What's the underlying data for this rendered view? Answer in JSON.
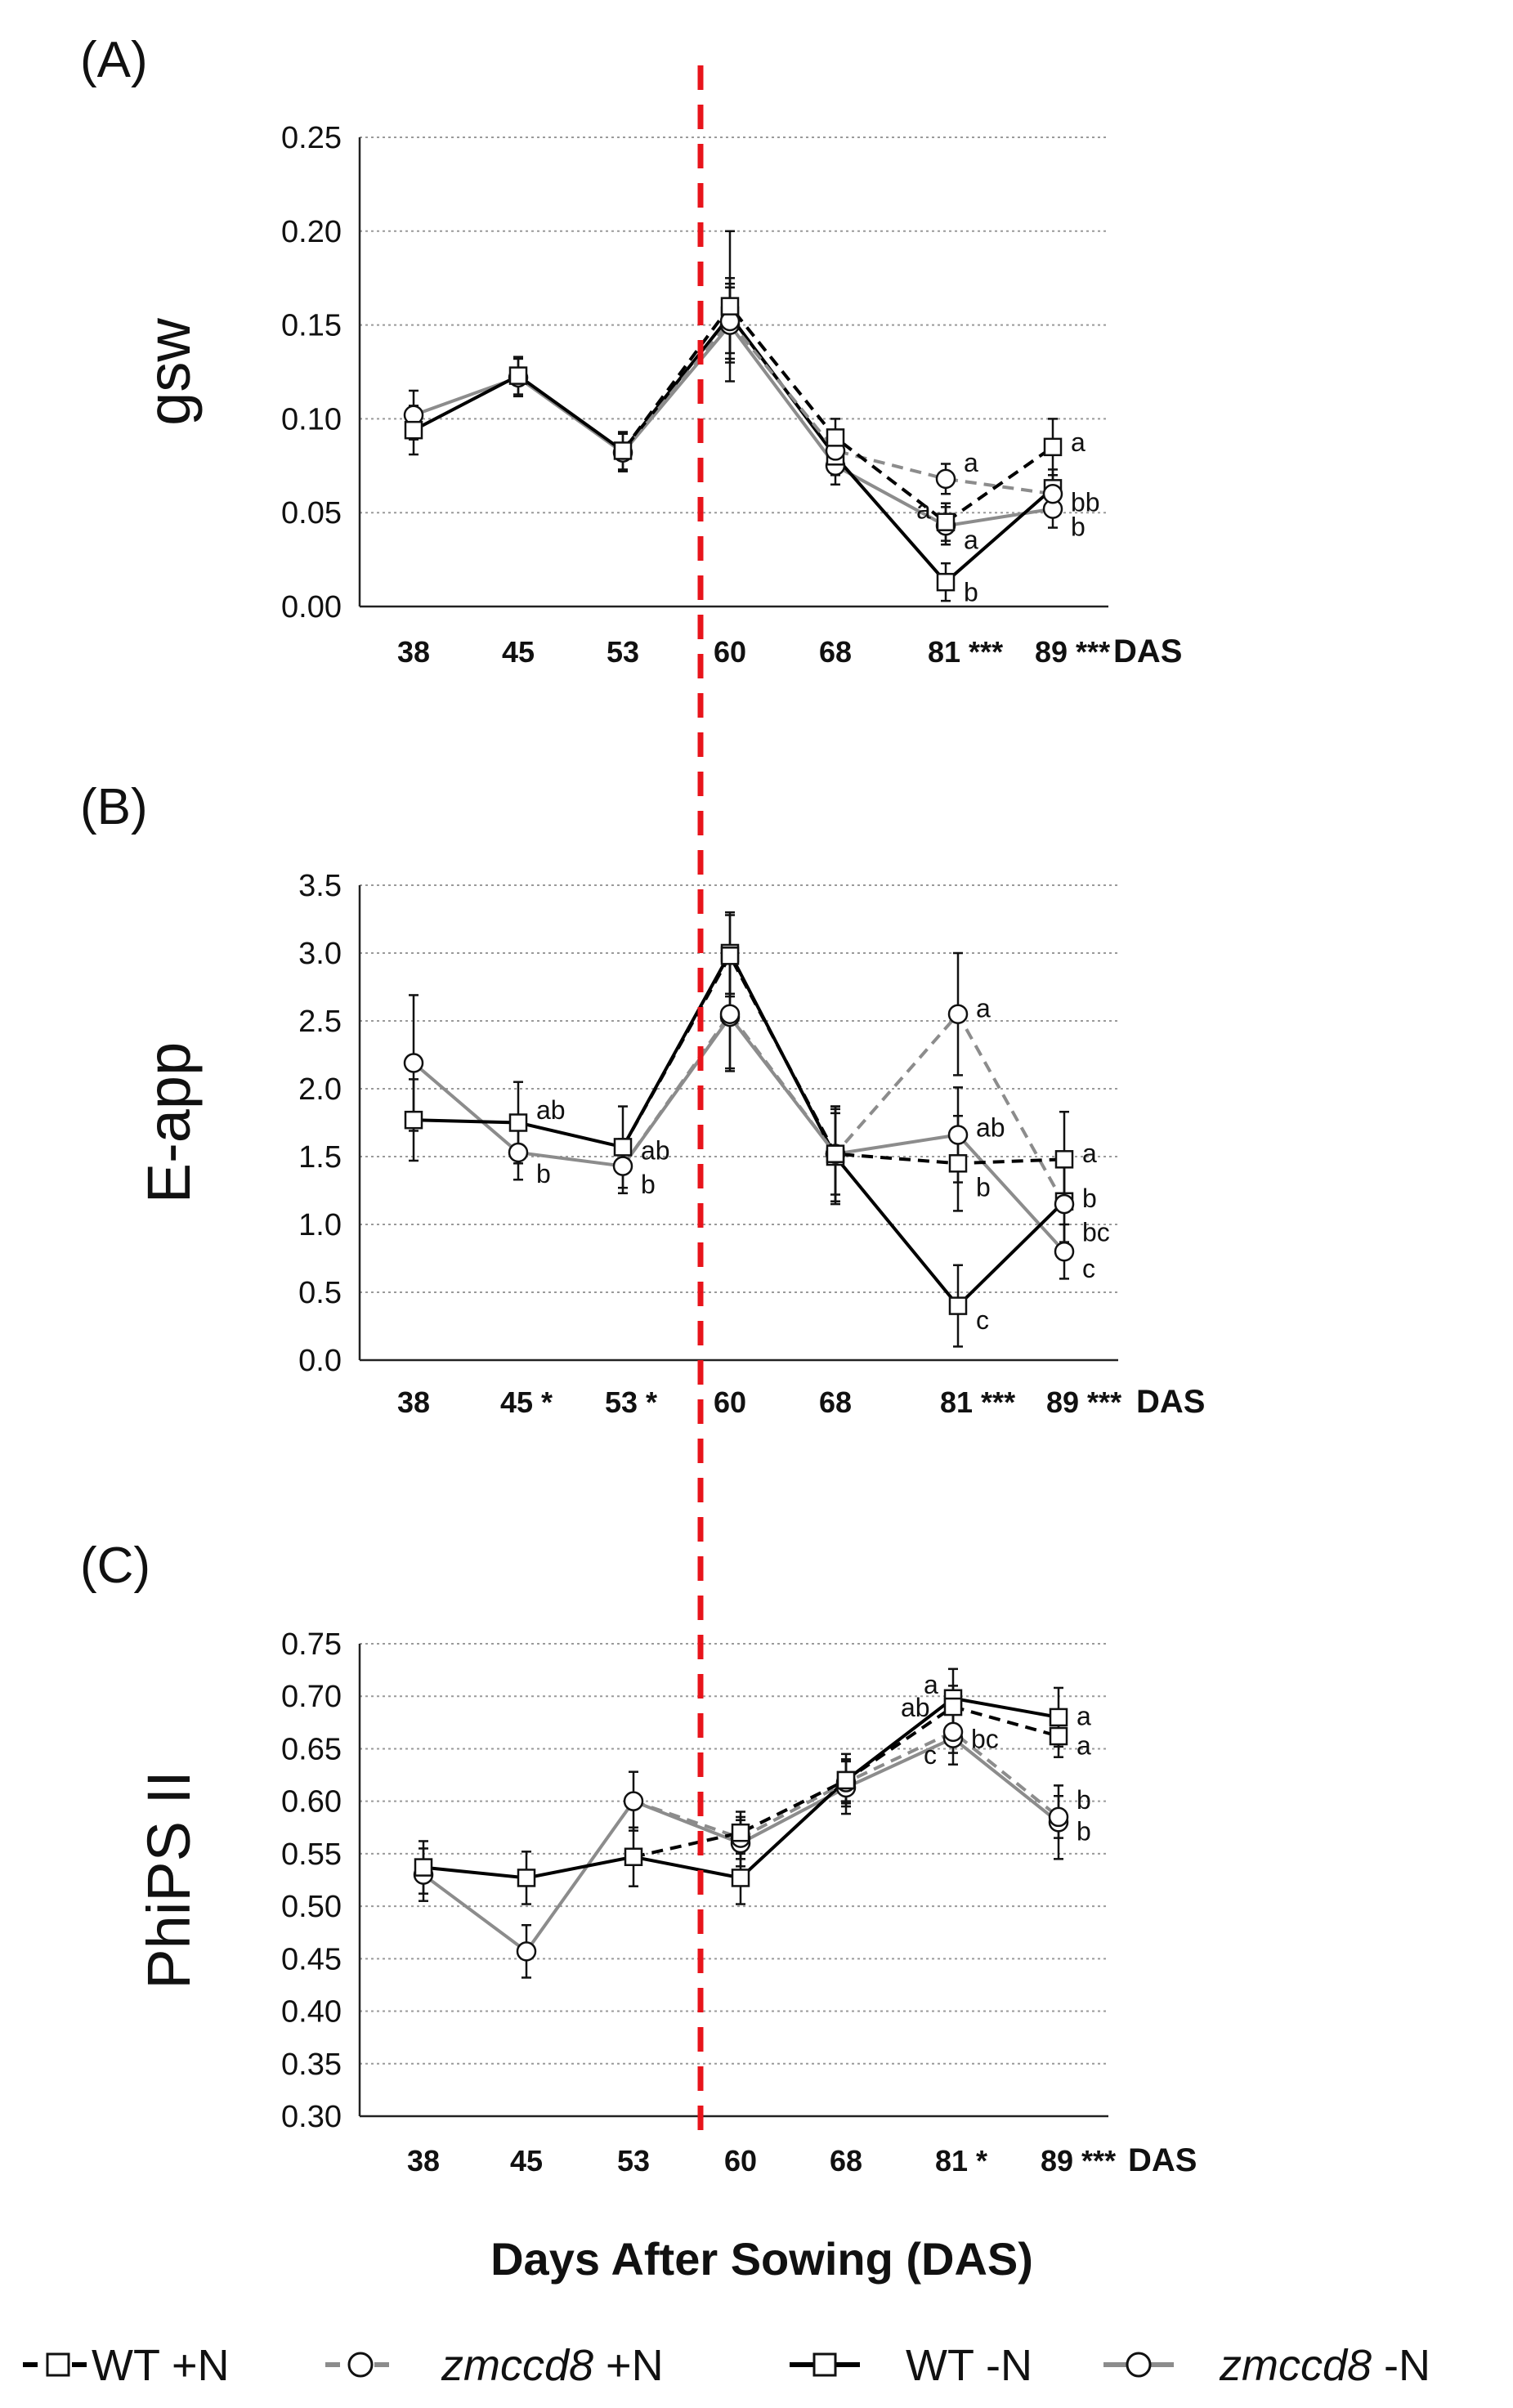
{
  "chart_data": {
    "type": "line",
    "shared_xlabel": "Days After Sowing (DAS)",
    "reference_line": {
      "label": "red dashed line between 53 and 60 DAS",
      "color": "#e8141b"
    },
    "legend": [
      {
        "id": "wt_pn",
        "prefix": "",
        "label": " +N",
        "name_main": "WT",
        "italic": false,
        "color": "#000000",
        "marker": "square",
        "dashed": true
      },
      {
        "id": "zm_pn",
        "prefix": "",
        "label": " +N",
        "name_main": "zmccd8",
        "italic": true,
        "color": "#8c8c8c",
        "marker": "circle",
        "dashed": true
      },
      {
        "id": "wt_mn",
        "prefix": "",
        "label": " -N",
        "name_main": "WT",
        "italic": false,
        "color": "#000000",
        "marker": "square",
        "dashed": false
      },
      {
        "id": "zm_mn",
        "prefix": "",
        "label": " -N",
        "name_main": "zmccd8",
        "italic": true,
        "color": "#8c8c8c",
        "marker": "circle",
        "dashed": false
      }
    ],
    "panels": [
      {
        "panel_label": "(A)",
        "ylabel": "gsw",
        "ylim": [
          0,
          0.25
        ],
        "yticks": [
          "0.00",
          "0.05",
          "0.10",
          "0.15",
          "0.20",
          "0.25"
        ],
        "ytick_values": [
          0,
          0.05,
          0.1,
          0.15,
          0.2,
          0.25
        ],
        "x": [
          38,
          45,
          53,
          60,
          68,
          81,
          89
        ],
        "x_labels": [
          "38",
          "45",
          "53",
          "60",
          "68",
          "81 ***",
          "89 ***"
        ],
        "x_unit": "DAS",
        "series": [
          {
            "id": "wt_pn",
            "values": [
              null,
              null,
              null,
              0.16,
              0.09,
              0.045,
              0.085
            ],
            "errors": [
              null,
              null,
              null,
              0.04,
              0.01,
              0.01,
              0.015
            ]
          },
          {
            "id": "zm_pn",
            "values": [
              null,
              null,
              null,
              0.152,
              0.083,
              0.068,
              0.06
            ],
            "errors": [
              null,
              null,
              null,
              0.02,
              0.01,
              0.008,
              0.01
            ]
          },
          {
            "id": "wt_mn",
            "values": [
              0.094,
              0.123,
              0.083,
              0.155,
              0.08,
              0.013,
              0.063
            ],
            "errors": [
              0.013,
              0.01,
              0.01,
              0.02,
              0.01,
              0.01,
              0.01
            ]
          },
          {
            "id": "zm_mn",
            "values": [
              0.102,
              0.122,
              0.082,
              0.15,
              0.075,
              0.043,
              0.052
            ],
            "errors": [
              0.013,
              0.01,
              0.01,
              0.02,
              0.01,
              0.01,
              0.01
            ]
          }
        ],
        "annotations": [
          {
            "text": "a",
            "x": 81,
            "y": 0.077
          },
          {
            "text": "a",
            "x": 81,
            "y": 0.052,
            "side": "left"
          },
          {
            "text": "a",
            "x": 81,
            "y": 0.036
          },
          {
            "text": "b",
            "x": 81,
            "y": 0.008
          },
          {
            "text": "a",
            "x": 89,
            "y": 0.088
          },
          {
            "text": "bb",
            "x": 89,
            "y": 0.056
          },
          {
            "text": "b",
            "x": 89,
            "y": 0.043
          }
        ]
      },
      {
        "panel_label": "(B)",
        "ylabel": "E-app",
        "ylim": [
          0,
          3.5
        ],
        "yticks": [
          "0.0",
          "0.5",
          "1.0",
          "1.5",
          "2.0",
          "2.5",
          "3.0",
          "3.5"
        ],
        "ytick_values": [
          0,
          0.5,
          1.0,
          1.5,
          2.0,
          2.5,
          3.0,
          3.5
        ],
        "x": [
          38,
          45,
          53,
          60,
          68,
          81,
          89
        ],
        "x_labels": [
          "38",
          "45 *",
          "53 *",
          "60",
          "68",
          "81 ***",
          "89 ***"
        ],
        "x_unit": "DAS",
        "series": [
          {
            "id": "wt_pn",
            "values": [
              null,
              null,
              null,
              2.98,
              1.52,
              1.45,
              1.48
            ],
            "errors": [
              null,
              null,
              null,
              0.3,
              0.35,
              0.35,
              0.35
            ]
          },
          {
            "id": "zm_pn",
            "values": [
              null,
              null,
              null,
              2.55,
              1.52,
              2.55,
              1.15
            ],
            "errors": [
              null,
              null,
              null,
              0.4,
              0.3,
              0.45,
              0.3
            ]
          },
          {
            "id": "wt_mn",
            "values": [
              1.77,
              1.75,
              1.57,
              3.0,
              1.5,
              0.4,
              1.17
            ],
            "errors": [
              0.3,
              0.3,
              0.3,
              0.3,
              0.35,
              0.3,
              0.3
            ]
          },
          {
            "id": "zm_mn",
            "values": [
              2.19,
              1.53,
              1.43,
              2.53,
              1.52,
              1.66,
              0.8
            ],
            "errors": [
              0.5,
              0.2,
              0.2,
              0.4,
              0.35,
              0.35,
              0.2
            ]
          }
        ],
        "annotations": [
          {
            "text": "ab",
            "x": 45,
            "y": 1.85
          },
          {
            "text": "b",
            "x": 45,
            "y": 1.38
          },
          {
            "text": "ab",
            "x": 53,
            "y": 1.55
          },
          {
            "text": "b",
            "x": 53,
            "y": 1.3
          },
          {
            "text": "a",
            "x": 81,
            "y": 2.6
          },
          {
            "text": "ab",
            "x": 81,
            "y": 1.72
          },
          {
            "text": "b",
            "x": 81,
            "y": 1.28
          },
          {
            "text": "c",
            "x": 81,
            "y": 0.3
          },
          {
            "text": "a",
            "x": 89,
            "y": 1.53
          },
          {
            "text": "b",
            "x": 89,
            "y": 1.2
          },
          {
            "text": "bc",
            "x": 89,
            "y": 0.95
          },
          {
            "text": "c",
            "x": 89,
            "y": 0.68
          }
        ]
      },
      {
        "panel_label": "(C)",
        "ylabel": "PhiPS II",
        "ylim": [
          0.3,
          0.75
        ],
        "yticks": [
          "0.30",
          "0.35",
          "0.40",
          "0.45",
          "0.50",
          "0.55",
          "0.60",
          "0.65",
          "0.70",
          "0.75"
        ],
        "ytick_values": [
          0.3,
          0.35,
          0.4,
          0.45,
          0.5,
          0.55,
          0.6,
          0.65,
          0.7,
          0.75
        ],
        "x": [
          38,
          45,
          53,
          60,
          68,
          81,
          89
        ],
        "x_labels": [
          "38",
          "45",
          "53",
          "60",
          "68",
          "81 *",
          "89 ***"
        ],
        "x_unit": "DAS",
        "series": [
          {
            "id": "wt_pn",
            "values": [
              null,
              null,
              null,
              0.57,
              0.62,
              0.69,
              0.662
            ],
            "errors": [
              null,
              null,
              null,
              0.02,
              0.02,
              0.02,
              0.02
            ]
          },
          {
            "id": "zm_pn",
            "values": [
              null,
              null,
              null,
              0.565,
              0.618,
              0.666,
              0.585
            ],
            "errors": [
              null,
              null,
              null,
              0.02,
              0.02,
              0.02,
              0.02
            ]
          },
          {
            "id": "wt_mn",
            "values": [
              0.537,
              0.527,
              0.547,
              0.527,
              0.62,
              0.698,
              0.68
            ],
            "errors": [
              0.025,
              0.025,
              0.028,
              0.025,
              0.025,
              0.028,
              0.028
            ]
          },
          {
            "id": "zm_mn",
            "values": [
              0.53,
              0.457,
              0.6,
              0.56,
              0.613,
              0.66,
              0.58
            ],
            "errors": [
              0.025,
              0.025,
              0.028,
              0.022,
              0.025,
              0.025,
              0.035
            ]
          }
        ],
        "annotations": [
          {
            "text": "a",
            "x": 81,
            "y": 0.712,
            "side": "left"
          },
          {
            "text": "ab",
            "x": 81,
            "y": 0.69,
            "side": "leftfar"
          },
          {
            "text": "bc",
            "x": 81,
            "y": 0.66
          },
          {
            "text": "c",
            "x": 81,
            "y": 0.645,
            "side": "left"
          },
          {
            "text": "a",
            "x": 89,
            "y": 0.682
          },
          {
            "text": "a",
            "x": 89,
            "y": 0.654
          },
          {
            "text": "b",
            "x": 89,
            "y": 0.602
          },
          {
            "text": "b",
            "x": 89,
            "y": 0.572
          }
        ]
      }
    ]
  }
}
